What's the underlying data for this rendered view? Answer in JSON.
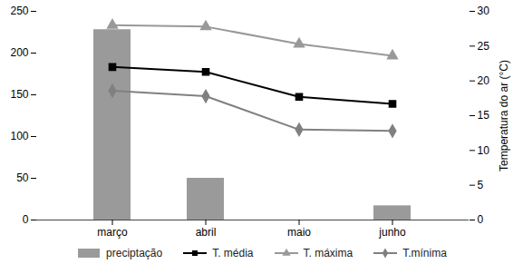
{
  "chart_data": {
    "type": "bar",
    "categories": [
      "março",
      "abril",
      "maio",
      "junho"
    ],
    "ylim": [
      0,
      250
    ],
    "yticks": [
      0,
      50,
      100,
      150,
      200,
      250
    ],
    "y2lim": [
      0,
      30
    ],
    "y2ticks": [
      0,
      5,
      10,
      15,
      20,
      25,
      30
    ],
    "y2label": "Temperatura do ar (°C)",
    "legend": "bottom",
    "series": [
      {
        "name": "preciptação",
        "type": "bar",
        "color": "#9a9a9a",
        "values": [
          228,
          50,
          0,
          17
        ]
      },
      {
        "name": "T. média",
        "type": "line",
        "axis": "y2",
        "color": "#000000",
        "marker": "square",
        "line_style": "solid",
        "values": [
          22,
          21.3,
          17.7,
          16.7
        ]
      },
      {
        "name": "T. máxima",
        "type": "line",
        "axis": "y2",
        "color": "#999999",
        "marker": "triangle",
        "line_style": "solid",
        "values": [
          28,
          27.8,
          25.3,
          23.6
        ]
      },
      {
        "name": "T.mínima",
        "type": "line",
        "axis": "y2",
        "color": "#808080",
        "marker": "diamond",
        "line_style": "solid",
        "values": [
          18.6,
          17.8,
          13,
          12.8
        ]
      }
    ]
  }
}
